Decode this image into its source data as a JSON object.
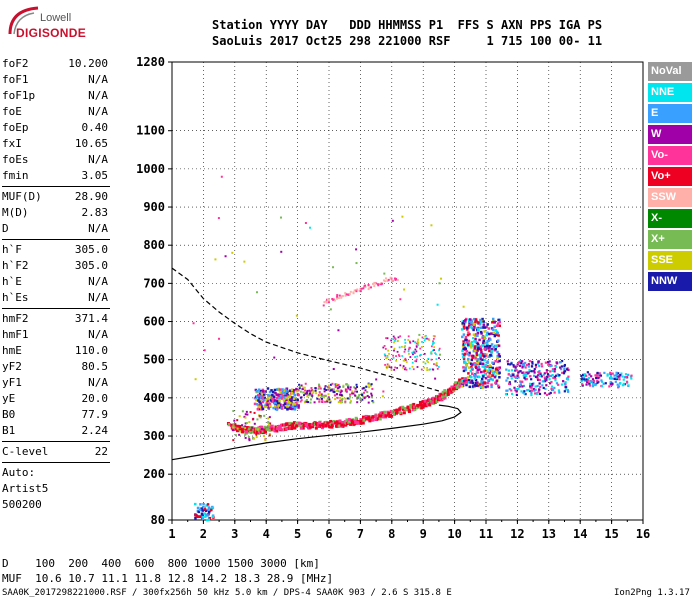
{
  "logo": {
    "line1": "Lowell",
    "line2": "DIGISONDE"
  },
  "header": {
    "labels": "Station YYYY DAY   DDD HHMMSS P1  FFS S AXN PPS IGA PS",
    "values": "SaoLuis 2017 Oct25 298 221000 RSF     1 715 100 00- 11"
  },
  "params": {
    "group1": [
      {
        "label": "foF2",
        "value": "10.200"
      },
      {
        "label": "foF1",
        "value": "N/A"
      },
      {
        "label": "foF1p",
        "value": "N/A"
      },
      {
        "label": "foE",
        "value": "N/A"
      },
      {
        "label": "foEp",
        "value": "0.40"
      },
      {
        "label": "fxI",
        "value": "10.65"
      },
      {
        "label": "foEs",
        "value": "N/A"
      },
      {
        "label": "fmin",
        "value": "3.05"
      }
    ],
    "group2": [
      {
        "label": "MUF(D)",
        "value": "28.90"
      },
      {
        "label": "M(D)",
        "value": "2.83"
      },
      {
        "label": "D",
        "value": "N/A"
      }
    ],
    "group3": [
      {
        "label": "h`F",
        "value": "305.0"
      },
      {
        "label": "h`F2",
        "value": "305.0"
      },
      {
        "label": "h`E",
        "value": "N/A"
      },
      {
        "label": "h`Es",
        "value": "N/A"
      }
    ],
    "group4": [
      {
        "label": "hmF2",
        "value": "371.4"
      },
      {
        "label": "hmF1",
        "value": "N/A"
      },
      {
        "label": "hmE",
        "value": "110.0"
      },
      {
        "label": "yF2",
        "value": "80.5"
      },
      {
        "label": "yF1",
        "value": "N/A"
      },
      {
        "label": "yE",
        "value": "20.0"
      },
      {
        "label": "B0",
        "value": "77.9"
      },
      {
        "label": "B1",
        "value": "2.24"
      }
    ],
    "group5": [
      {
        "label": "C-level",
        "value": "22"
      }
    ],
    "auto": [
      "Auto:",
      "Artist5",
      "500200"
    ]
  },
  "legend": [
    {
      "name": "NoVal",
      "color": "#9a9a9a"
    },
    {
      "name": "NNE",
      "color": "#00e5ee"
    },
    {
      "name": "E",
      "color": "#3aa0ff"
    },
    {
      "name": "W",
      "color": "#a000a8"
    },
    {
      "name": "Vo-",
      "color": "#ff3399"
    },
    {
      "name": "Vo+",
      "color": "#ee0022"
    },
    {
      "name": "SSW",
      "color": "#ffb0a8"
    },
    {
      "name": "X-",
      "color": "#008800"
    },
    {
      "name": "X+",
      "color": "#77bb55"
    },
    {
      "name": "SSE",
      "color": "#cccc00"
    },
    {
      "name": "NNW",
      "color": "#1a1aaa"
    }
  ],
  "footer": {
    "line1": "D    100  200  400  600  800 1000 1500 3000 [km]",
    "line2": "MUF  10.6 10.7 11.1 11.8 12.8 14.2 18.3 28.9 [MHz]",
    "line3": "SAA0K_2017298221000.RSF / 300fx256h 50 kHz 5.0 km / DPS-4 SAA0K 903 / 2.6 S 315.8 E",
    "version": "Ion2Png 1.3.17"
  },
  "chart_data": {
    "type": "scatter",
    "x_ticks": [
      1,
      2,
      3,
      4,
      5,
      6,
      7,
      8,
      9,
      10,
      11,
      12,
      13,
      14,
      15,
      16
    ],
    "y_ticks": [
      80,
      200,
      300,
      400,
      500,
      600,
      700,
      800,
      900,
      1000,
      1100,
      1280
    ],
    "xlim": [
      1,
      16
    ],
    "ylim": [
      80,
      1280
    ],
    "grid": true,
    "profile_curve": {
      "freq": [
        1.0,
        2.0,
        3.0,
        4.0,
        5.0,
        6.0,
        7.0,
        8.0,
        9.0,
        9.6,
        10.0,
        10.2,
        10.1,
        9.8,
        9.5
      ],
      "height": [
        238,
        252,
        268,
        282,
        293,
        302,
        310,
        320,
        331,
        340,
        350,
        362,
        372,
        378,
        381
      ]
    },
    "dashed_curve": {
      "freq": [
        1.0,
        1.5,
        2.0,
        2.5,
        3.0,
        3.5,
        4.0,
        5.0,
        6.0,
        7.0,
        8.0,
        9.0,
        9.5
      ],
      "height": [
        740,
        710,
        660,
        625,
        595,
        568,
        546,
        518,
        497,
        478,
        455,
        430,
        418
      ]
    },
    "trace_vo_plus": {
      "freq": [
        2.8,
        3.2,
        3.6,
        4.0,
        4.5,
        5.0,
        5.5,
        6.0,
        6.5,
        7.0,
        7.5,
        8.0,
        8.5,
        9.0,
        9.3,
        9.6,
        9.9,
        10.1,
        10.3
      ],
      "height": [
        330,
        320,
        318,
        322,
        328,
        332,
        332,
        334,
        338,
        345,
        355,
        365,
        375,
        388,
        398,
        410,
        428,
        442,
        450
      ]
    },
    "trace_oblique": {
      "freq": [
        5.8,
        6.2,
        6.6,
        7.0,
        7.4,
        7.8,
        8.2
      ],
      "height": [
        650,
        665,
        675,
        688,
        698,
        710,
        718
      ]
    }
  }
}
